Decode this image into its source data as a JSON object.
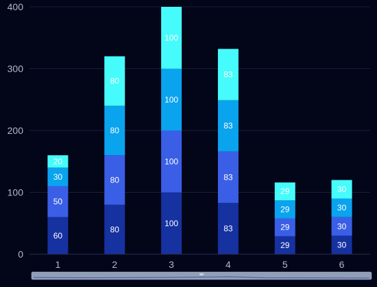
{
  "chart_data": {
    "type": "bar",
    "stacked": true,
    "categories": [
      "1",
      "2",
      "3",
      "4",
      "5",
      "6"
    ],
    "series": [
      {
        "values": [
          60,
          80,
          100,
          83,
          29,
          30
        ],
        "color": "#1631a0"
      },
      {
        "values": [
          50,
          80,
          100,
          83,
          29,
          30
        ],
        "color": "#3a5fe6"
      },
      {
        "values": [
          30,
          80,
          100,
          83,
          29,
          30
        ],
        "color": "#0aa3ee"
      },
      {
        "values": [
          20,
          80,
          100,
          83,
          29,
          30
        ],
        "color": "#45fbfb"
      }
    ],
    "segment_labels": [
      [
        "60",
        "80",
        "100",
        "83",
        "29",
        "30"
      ],
      [
        "50",
        "80",
        "100",
        "83",
        "29",
        "30"
      ],
      [
        "30",
        "80",
        "100",
        "83",
        "29",
        "30"
      ],
      [
        "20",
        "80",
        "100",
        "83",
        "29",
        "30"
      ]
    ],
    "y_ticks": [
      "0",
      "100",
      "200",
      "300",
      "400"
    ],
    "ylim": [
      0,
      400
    ],
    "grid": true,
    "title": "",
    "xlabel": "",
    "ylabel": ""
  },
  "data_zoom": {
    "range": [
      0,
      100
    ],
    "handle_icon": "grip-icon",
    "fill_color": "#aab6cc"
  },
  "colors": {
    "background": "#030519",
    "grid": "#1b1f36",
    "axis_text": "#b3b8c8"
  }
}
